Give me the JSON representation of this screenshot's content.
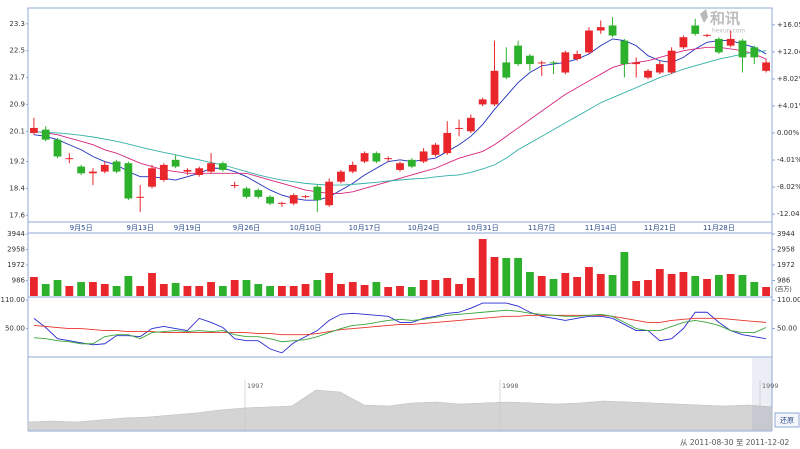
{
  "logo": {
    "name": "和讯",
    "site": "hexun.com"
  },
  "footer": "从 2011-08-30 至 2011-12-02",
  "button": "还原",
  "chart_data": [
    {
      "type": "candlestick",
      "categories": [
        null,
        null,
        null,
        null,
        "9月5日",
        null,
        null,
        null,
        null,
        "9月13日",
        null,
        null,
        null,
        "9月19日",
        null,
        null,
        null,
        null,
        "9月26日",
        null,
        null,
        null,
        null,
        "10月10日",
        null,
        null,
        null,
        null,
        "10月17日",
        null,
        null,
        null,
        null,
        "10月24日",
        null,
        null,
        null,
        null,
        "10月31日",
        null,
        null,
        null,
        null,
        "11月7日",
        null,
        null,
        null,
        null,
        "11月14日",
        null,
        null,
        null,
        null,
        "11月21日",
        null,
        null,
        null,
        null,
        "11月28日",
        null,
        null,
        null,
        null
      ],
      "open": [
        20.05,
        20.15,
        19.85,
        19.3,
        19.05,
        18.85,
        18.9,
        19.2,
        19.15,
        18.15,
        18.45,
        18.65,
        19.25,
        18.9,
        18.8,
        18.9,
        19.15,
        18.5,
        18.4,
        18.35,
        18.15,
        17.95,
        17.95,
        18.15,
        18.45,
        17.9,
        18.6,
        18.9,
        19.2,
        19.45,
        19.3,
        18.95,
        19.25,
        19.2,
        19.4,
        19.45,
        20.2,
        20.1,
        20.9,
        20.9,
        22.15,
        22.65,
        22.35,
        22.15,
        22.15,
        21.85,
        22.25,
        22.45,
        23.1,
        23.25,
        22.8,
        22.1,
        21.7,
        21.85,
        21.85,
        22.6,
        23.25,
        22.95,
        22.85,
        22.65,
        22.8,
        22.6,
        21.9
      ],
      "high": [
        20.5,
        20.25,
        19.9,
        19.45,
        19.1,
        19.0,
        19.2,
        19.25,
        19.2,
        18.5,
        19.1,
        19.15,
        19.4,
        19.0,
        19.05,
        19.45,
        19.2,
        18.6,
        18.45,
        18.4,
        18.2,
        18.0,
        18.25,
        18.2,
        18.5,
        18.7,
        18.95,
        19.2,
        19.5,
        19.5,
        19.35,
        19.2,
        19.3,
        19.6,
        19.75,
        20.4,
        20.45,
        20.6,
        21.1,
        22.8,
        22.6,
        22.8,
        22.4,
        22.2,
        22.2,
        22.5,
        22.5,
        23.2,
        23.4,
        23.5,
        22.85,
        22.3,
        21.95,
        22.2,
        22.6,
        22.95,
        23.45,
        23.0,
        22.9,
        23.1,
        22.85,
        22.65,
        22.25
      ],
      "low": [
        20.0,
        19.8,
        19.3,
        19.15,
        18.8,
        18.5,
        18.85,
        18.85,
        18.05,
        17.7,
        18.4,
        18.6,
        19.0,
        18.8,
        18.75,
        18.85,
        18.9,
        18.4,
        18.1,
        18.1,
        17.9,
        17.85,
        17.9,
        18.1,
        17.7,
        17.85,
        18.55,
        18.85,
        19.15,
        19.15,
        19.2,
        18.9,
        19.0,
        19.15,
        19.35,
        19.4,
        19.95,
        20.05,
        20.85,
        20.85,
        21.65,
        22.05,
        21.9,
        21.75,
        21.8,
        21.8,
        22.2,
        22.4,
        23.0,
        22.9,
        21.7,
        21.7,
        21.65,
        21.8,
        21.8,
        22.55,
        22.95,
        22.9,
        22.4,
        22.6,
        21.85,
        22.1,
        21.85
      ],
      "close": [
        20.2,
        19.85,
        19.35,
        19.3,
        18.85,
        18.9,
        19.1,
        18.9,
        18.1,
        18.15,
        19.0,
        19.1,
        19.05,
        18.95,
        19.0,
        19.15,
        18.95,
        18.5,
        18.15,
        18.15,
        17.95,
        17.97,
        18.2,
        18.17,
        18.05,
        18.6,
        18.9,
        19.1,
        19.45,
        19.2,
        19.3,
        19.15,
        19.05,
        19.5,
        19.7,
        20.05,
        20.2,
        20.5,
        21.05,
        21.9,
        21.7,
        22.1,
        22.1,
        22.15,
        22.13,
        22.45,
        22.4,
        23.1,
        23.2,
        22.95,
        22.1,
        22.15,
        21.9,
        22.1,
        22.5,
        22.9,
        23.0,
        22.97,
        22.45,
        22.85,
        22.3,
        22.3,
        22.15
      ],
      "up_color": "#e8262b",
      "down_color": "#2db12d",
      "series": [
        {
          "color": "#1f2fbf",
          "values": [
            20.0,
            19.95,
            19.85,
            19.7,
            19.55,
            19.35,
            19.2,
            19.1,
            18.9,
            18.75,
            18.75,
            18.7,
            18.65,
            18.75,
            18.85,
            19.0,
            19.0,
            18.9,
            18.75,
            18.55,
            18.35,
            18.2,
            18.1,
            18.05,
            18.05,
            18.15,
            18.35,
            18.55,
            18.8,
            19.0,
            19.2,
            19.25,
            19.2,
            19.25,
            19.3,
            19.5,
            19.7,
            19.95,
            20.3,
            20.75,
            21.15,
            21.55,
            21.85,
            22.05,
            22.1,
            22.15,
            22.25,
            22.4,
            22.65,
            22.85,
            22.8,
            22.65,
            22.35,
            22.2,
            22.15,
            22.3,
            22.55,
            22.75,
            22.8,
            22.8,
            22.7,
            22.6,
            22.4
          ]
        },
        {
          "color": "#d6267d",
          "values": [
            20.1,
            20.05,
            20.0,
            19.9,
            19.8,
            19.7,
            19.55,
            19.45,
            19.3,
            19.15,
            19.05,
            18.95,
            18.9,
            18.85,
            18.85,
            18.85,
            18.85,
            18.85,
            18.85,
            18.75,
            18.65,
            18.55,
            18.45,
            18.35,
            18.3,
            18.25,
            18.25,
            18.3,
            18.4,
            18.5,
            18.6,
            18.7,
            18.8,
            18.9,
            19.0,
            19.15,
            19.3,
            19.4,
            19.5,
            19.7,
            19.95,
            20.2,
            20.45,
            20.7,
            20.95,
            21.2,
            21.4,
            21.6,
            21.8,
            22.0,
            22.1,
            22.15,
            22.2,
            22.3,
            22.4,
            22.5,
            22.55,
            22.6,
            22.6,
            22.55,
            22.5,
            22.4,
            22.25
          ]
        },
        {
          "color": "#33b0a8",
          "values": [
            20.08,
            20.07,
            20.05,
            20.02,
            19.98,
            19.93,
            19.87,
            19.8,
            19.72,
            19.63,
            19.55,
            19.47,
            19.4,
            19.32,
            19.25,
            19.17,
            19.1,
            19.0,
            18.9,
            18.8,
            18.72,
            18.65,
            18.6,
            18.55,
            18.52,
            18.5,
            18.5,
            18.52,
            18.55,
            18.58,
            18.62,
            18.65,
            18.68,
            18.7,
            18.74,
            18.78,
            18.8,
            18.88,
            18.98,
            19.1,
            19.3,
            19.55,
            19.75,
            19.95,
            20.15,
            20.35,
            20.55,
            20.75,
            20.95,
            21.1,
            21.25,
            21.4,
            21.55,
            21.7,
            21.82,
            21.95,
            22.05,
            22.15,
            22.25,
            22.32,
            22.4,
            22.45,
            22.5
          ]
        }
      ],
      "ylim": [
        17.4,
        23.77
      ],
      "yticks": [
        23.3,
        22.5,
        21.7,
        20.9,
        20.1,
        19.2,
        18.4,
        17.6
      ],
      "y2lim": [
        -13.2,
        18.55
      ],
      "y2ticks": [
        {
          "value": 16.05,
          "label": "+16.05%"
        },
        {
          "value": 12.04,
          "label": "+12.04%"
        },
        {
          "value": 8.02,
          "label": "+8.02%"
        },
        {
          "value": 4.01,
          "label": "+4.01%"
        },
        {
          "value": 0,
          "label": "0.00%"
        },
        {
          "value": -4.01,
          "label": "-4.01%"
        },
        {
          "value": -8.02,
          "label": "-8.02%"
        },
        {
          "value": -12.04,
          "label": "-12.04%"
        }
      ]
    },
    {
      "type": "bar",
      "unit": "(百万)",
      "values": [
        1208,
        763,
        1018,
        636,
        890,
        890,
        763,
        636,
        1272,
        636,
        1463,
        763,
        827,
        636,
        636,
        890,
        636,
        1018,
        1018,
        763,
        636,
        636,
        636,
        763,
        1018,
        1463,
        763,
        890,
        700,
        890,
        572,
        636,
        572,
        1018,
        1018,
        1145,
        763,
        1145,
        3625,
        2480,
        2417,
        2417,
        1526,
        1272,
        1081,
        1463,
        1208,
        1844,
        1399,
        1336,
        2798,
        954,
        1018,
        1717,
        1399,
        1526,
        1272,
        1081,
        1336,
        1399,
        1336,
        890,
        572
      ],
      "ylim": [
        0,
        3944
      ],
      "yticks": [
        3944,
        2958,
        1972,
        986
      ]
    },
    {
      "type": "line",
      "series": [
        {
          "color": "#2a2ad0",
          "values": [
            71.4,
            52.1,
            28.6,
            24.3,
            20.0,
            15.7,
            17.9,
            35.0,
            35.0,
            32.9,
            50.0,
            54.3,
            50.0,
            45.7,
            71.4,
            62.9,
            52.1,
            28.6,
            24.3,
            24.3,
            7.1,
            -1.4,
            20.0,
            32.9,
            45.7,
            67.1,
            80.0,
            82.1,
            80.0,
            77.9,
            75.7,
            62.9,
            62.9,
            71.4,
            75.7,
            82.1,
            84.3,
            92.9,
            103.6,
            103.6,
            103.6,
            97.1,
            84.3,
            75.7,
            71.4,
            67.1,
            71.4,
            75.7,
            75.7,
            71.4,
            58.6,
            45.7,
            45.7,
            24.3,
            28.6,
            50.0,
            84.3,
            84.3,
            62.9,
            45.7,
            37.1,
            32.9,
            28.6
          ]
        },
        {
          "color": "#e8332b",
          "values": [
            56.4,
            54.3,
            52.1,
            50.0,
            50.0,
            47.9,
            45.7,
            45.7,
            43.6,
            43.6,
            43.6,
            41.4,
            41.4,
            41.4,
            41.4,
            41.4,
            41.4,
            41.4,
            41.4,
            39.3,
            39.3,
            37.1,
            37.1,
            37.1,
            39.3,
            43.6,
            47.9,
            50.0,
            52.1,
            54.3,
            56.4,
            58.6,
            58.6,
            60.7,
            62.9,
            65.0,
            67.1,
            69.3,
            71.4,
            73.6,
            75.7,
            75.7,
            77.9,
            77.9,
            77.9,
            77.9,
            77.9,
            77.9,
            77.9,
            75.7,
            71.4,
            67.1,
            62.9,
            62.9,
            67.1,
            69.3,
            71.4,
            71.4,
            71.4,
            69.3,
            67.1,
            65.0,
            62.9
          ]
        },
        {
          "color": "#3aa53a",
          "values": [
            30.7,
            28.6,
            24.3,
            22.1,
            17.9,
            17.9,
            32.9,
            37.1,
            37.1,
            28.6,
            41.4,
            43.6,
            45.7,
            43.6,
            45.7,
            43.6,
            45.7,
            37.1,
            32.9,
            32.9,
            28.6,
            22.1,
            24.3,
            26.4,
            32.9,
            41.4,
            50.0,
            56.4,
            58.6,
            62.9,
            67.1,
            69.3,
            67.1,
            69.3,
            73.6,
            77.9,
            80.0,
            82.1,
            84.3,
            86.4,
            88.6,
            86.4,
            82.1,
            80.0,
            77.9,
            75.7,
            75.7,
            77.9,
            80.0,
            75.7,
            62.9,
            50.0,
            45.7,
            45.7,
            54.3,
            62.9,
            67.1,
            62.9,
            56.4,
            45.7,
            41.4,
            41.4,
            52.1
          ]
        }
      ],
      "ylim": [
        -7.9,
        114.3
      ],
      "yticks": [
        {
          "value": 110,
          "label": "110.00"
        },
        {
          "value": 50,
          "label": "50.00"
        }
      ]
    },
    {
      "type": "area",
      "color": "#d4d4d4",
      "years": [
        "1997",
        "1998",
        "1999"
      ],
      "values": [
        8,
        9,
        8,
        10,
        12,
        13,
        15,
        17,
        20,
        22,
        23,
        24,
        40,
        38,
        25,
        24,
        27,
        28,
        26,
        27,
        28,
        27,
        26,
        27,
        29,
        28,
        27,
        26,
        25,
        24,
        25,
        23
      ],
      "ylim": [
        0,
        72
      ]
    }
  ]
}
